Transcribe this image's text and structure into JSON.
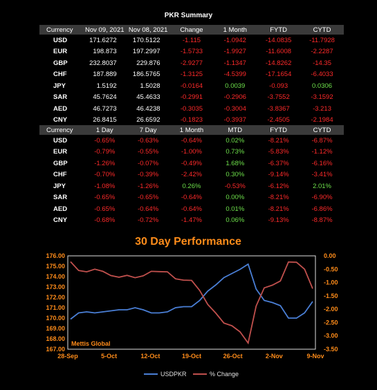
{
  "summary_title": "PKR Summary",
  "table1": {
    "headers": [
      "Currency",
      "Nov 09, 2021",
      "Nov 08, 2021",
      "Change",
      "1 Month",
      "FYTD",
      "CYTD"
    ],
    "rows": [
      [
        "USD",
        "171.6272",
        "170.5122",
        "-1.115",
        "-1.0942",
        "-14.0835",
        "-11.7928"
      ],
      [
        "EUR",
        "198.873",
        "197.2997",
        "-1.5733",
        "-1.9927",
        "-11.6008",
        "-2.2287"
      ],
      [
        "GBP",
        "232.8037",
        "229.876",
        "-2.9277",
        "-1.1347",
        "-14.8262",
        "-14.35"
      ],
      [
        "CHF",
        "187.889",
        "186.5765",
        "-1.3125",
        "-4.5399",
        "-17.1654",
        "-6.4033"
      ],
      [
        "JPY",
        "1.5192",
        "1.5028",
        "-0.0164",
        "0.0039",
        "-0.093",
        "0.0306"
      ],
      [
        "SAR",
        "45.7624",
        "45.4633",
        "-0.2991",
        "-0.2906",
        "-3.7552",
        "-3.1592"
      ],
      [
        "AED",
        "46.7273",
        "46.4238",
        "-0.3035",
        "-0.3004",
        "-3.8367",
        "-3.213"
      ],
      [
        "CNY",
        "26.8415",
        "26.6592",
        "-0.1823",
        "-0.3937",
        "-2.4505",
        "-2.1984"
      ]
    ]
  },
  "table2": {
    "headers": [
      "Currency",
      "1 Day",
      "7 Day",
      "1 Month",
      "MTD",
      "FYTD",
      "CYTD"
    ],
    "rows": [
      [
        "USD",
        "-0.65%",
        "-0.63%",
        "-0.64%",
        "0.02%",
        "-8.21%",
        "-6.87%"
      ],
      [
        "EUR",
        "-0.79%",
        "-0.55%",
        "-1.00%",
        "0.73%",
        "-5.83%",
        "-1.12%"
      ],
      [
        "GBP",
        "-1.26%",
        "-0.07%",
        "-0.49%",
        "1.68%",
        "-6.37%",
        "-6.16%"
      ],
      [
        "CHF",
        "-0.70%",
        "-0.39%",
        "-2.42%",
        "0.30%",
        "-9.14%",
        "-3.41%"
      ],
      [
        "JPY",
        "-1.08%",
        "-1.26%",
        "0.26%",
        "-0.53%",
        "-6.12%",
        "2.01%"
      ],
      [
        "SAR",
        "-0.65%",
        "-0.65%",
        "-0.64%",
        "0.00%",
        "-8.21%",
        "-6.90%"
      ],
      [
        "AED",
        "-0.65%",
        "-0.64%",
        "-0.64%",
        "0.01%",
        "-8.21%",
        "-6.86%"
      ],
      [
        "CNY",
        "-0.68%",
        "-0.72%",
        "-1.47%",
        "0.06%",
        "-9.13%",
        "-8.87%"
      ]
    ]
  },
  "colors": {
    "negative": "#ff2a2a",
    "positive": "#6de04a",
    "header_bg": "#3a3a3a",
    "usd_line": "#4a7fd6",
    "change_line": "#c0504d",
    "title": "#ff8c1a",
    "axis_text": "#ff8c1a"
  },
  "chart_data": {
    "type": "line",
    "title": "30 Day Performance",
    "watermark": "Mettis Global",
    "x_tick_labels": [
      "28-Sep",
      "5-Oct",
      "12-Oct",
      "19-Oct",
      "26-Oct",
      "2-Nov",
      "9-Nov"
    ],
    "y_left": {
      "min": 167,
      "max": 176,
      "ticks": [
        "167.00",
        "168.00",
        "169.00",
        "170.00",
        "171.00",
        "172.00",
        "173.00",
        "174.00",
        "175.00",
        "176.00"
      ]
    },
    "y_right": {
      "min": -3.5,
      "max": 0,
      "ticks": [
        "0.00",
        "-0.50",
        "-1.00",
        "-1.50",
        "-2.00",
        "-2.50",
        "-3.00",
        "-3.50"
      ]
    },
    "grid": false,
    "legend_position": "bottom",
    "series": [
      {
        "name": "USDPKR",
        "axis": "left",
        "values": [
          169.9,
          170.5,
          170.6,
          170.5,
          170.6,
          170.7,
          170.8,
          170.8,
          171.0,
          170.8,
          170.5,
          170.5,
          170.6,
          171.0,
          171.1,
          171.1,
          171.7,
          172.6,
          173.2,
          173.9,
          174.3,
          174.7,
          175.2,
          172.8,
          171.7,
          171.5,
          171.2,
          170.0,
          170.0,
          170.5,
          171.6
        ]
      },
      {
        "name": "% Change",
        "axis": "right",
        "values": [
          -0.22,
          -0.55,
          -0.6,
          -0.5,
          -0.58,
          -0.74,
          -0.8,
          -0.73,
          -0.82,
          -0.75,
          -0.58,
          -0.59,
          -0.6,
          -0.86,
          -0.91,
          -0.92,
          -1.3,
          -1.82,
          -2.15,
          -2.52,
          -2.62,
          -2.85,
          -3.27,
          -1.88,
          -1.2,
          -1.1,
          -0.94,
          -0.23,
          -0.24,
          -0.5,
          -1.23
        ]
      }
    ]
  }
}
